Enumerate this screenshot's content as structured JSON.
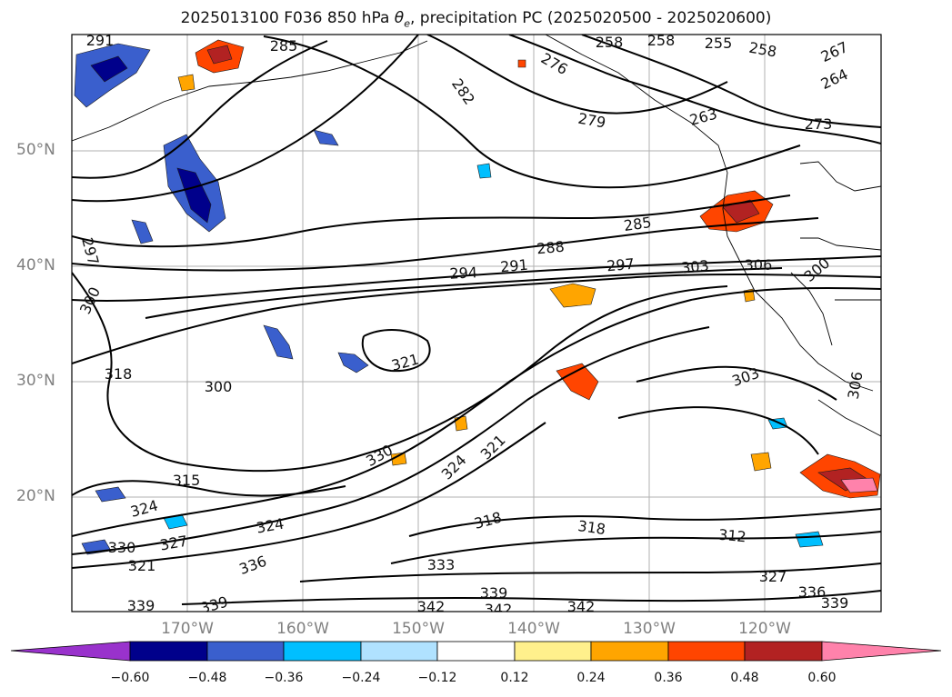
{
  "title": {
    "prefix": "2025013100 F036 850 hPa ",
    "symbol": "θ",
    "subscript": "e",
    "suffix": ", precipitation PC (2025020500 - 2025020600)"
  },
  "lat_labels": [
    "50°N",
    "40°N",
    "30°N",
    "20°N"
  ],
  "lon_labels": [
    "170°W",
    "160°W",
    "150°W",
    "140°W",
    "130°W",
    "120°W"
  ],
  "colorbar": {
    "ticks": [
      "−0.60",
      "−0.48",
      "−0.36",
      "−0.24",
      "−0.12",
      "0.12",
      "0.24",
      "0.36",
      "0.48",
      "0.60"
    ],
    "colors": [
      "#9932cc",
      "#00008b",
      "#3a5fcd",
      "#00bfff",
      "#b0e2ff",
      "#ffffff",
      "#fff08c",
      "#ffa500",
      "#ff4500",
      "#b22222",
      "#ff82ab"
    ]
  },
  "contour_labels": [
    "291",
    "285",
    "282",
    "276",
    "258",
    "258",
    "255",
    "258",
    "267",
    "264",
    "279",
    "263",
    "273",
    "285",
    "288",
    "291",
    "294",
    "297",
    "303",
    "306",
    "300",
    "297",
    "300",
    "318",
    "300",
    "321",
    "303",
    "306",
    "330",
    "324",
    "321",
    "315",
    "324",
    "330",
    "327",
    "321",
    "324",
    "336",
    "318",
    "318",
    "312",
    "333",
    "327",
    "336",
    "339",
    "339",
    "342",
    "342",
    "339",
    "342",
    "339"
  ]
}
